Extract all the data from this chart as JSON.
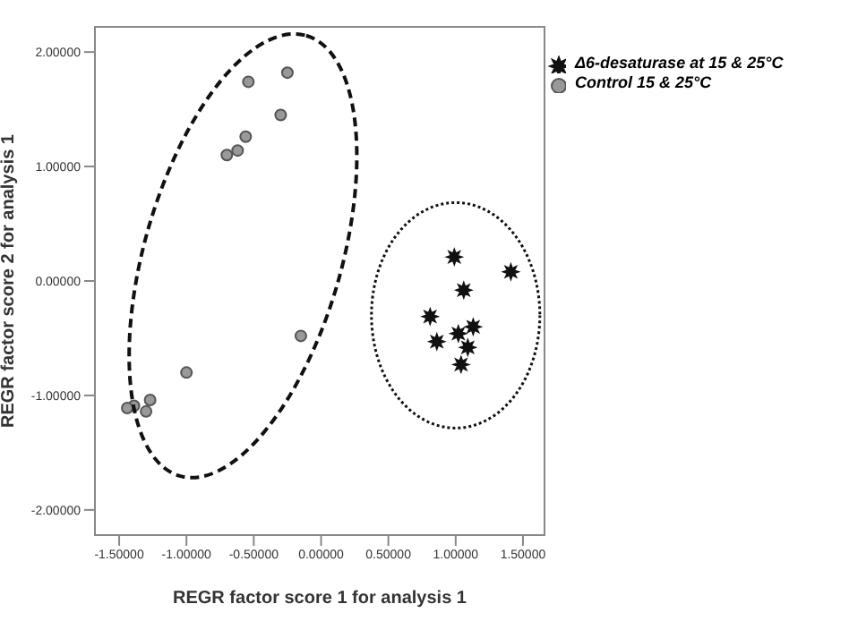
{
  "chart_data": {
    "type": "scatter",
    "xlabel": "REGR factor score   1 for analysis 1",
    "ylabel": "REGR factor score   2 for analysis 1",
    "xlim": [
      -1.68,
      1.66
    ],
    "ylim": [
      -2.22,
      2.22
    ],
    "xticks": [
      {
        "value": -1.5,
        "label": "-1.50000"
      },
      {
        "value": -1,
        "label": "-1.00000"
      },
      {
        "value": -0.5,
        "label": "-0.50000"
      },
      {
        "value": 0,
        "label": "0.00000"
      },
      {
        "value": 0.5,
        "label": "0.50000"
      },
      {
        "value": 1,
        "label": "1.00000"
      },
      {
        "value": 1.5,
        "label": "1.50000"
      }
    ],
    "yticks": [
      {
        "value": -2,
        "label": "-2.00000"
      },
      {
        "value": -1,
        "label": "-1.00000"
      },
      {
        "value": 0,
        "label": "0.00000"
      },
      {
        "value": 1,
        "label": "1.00000"
      },
      {
        "value": 2,
        "label": "2.00000"
      }
    ],
    "grid": false,
    "legend": "top right",
    "series": [
      {
        "name": "Δ6-desaturase at 15 & 25°C",
        "color": "#111111",
        "marker": "star",
        "x": [
          0.99,
          1.41,
          1.06,
          0.81,
          1.13,
          1.02,
          0.86,
          1.09,
          1.04
        ],
        "values": [
          0.21,
          0.08,
          -0.08,
          -0.31,
          -0.4,
          -0.46,
          -0.53,
          -0.58,
          -0.73
        ]
      },
      {
        "name": "Control 15 & 25°C",
        "color": "#999999",
        "marker": "circle",
        "x": [
          -0.54,
          -0.25,
          -0.3,
          -0.56,
          -0.62,
          -0.7,
          -0.15,
          -1.0,
          -1.27,
          -1.3,
          -1.39,
          -1.44
        ],
        "values": [
          1.74,
          1.82,
          1.45,
          1.26,
          1.14,
          1.1,
          -0.48,
          -0.8,
          -1.04,
          -1.14,
          -1.09,
          -1.11
        ]
      }
    ]
  }
}
